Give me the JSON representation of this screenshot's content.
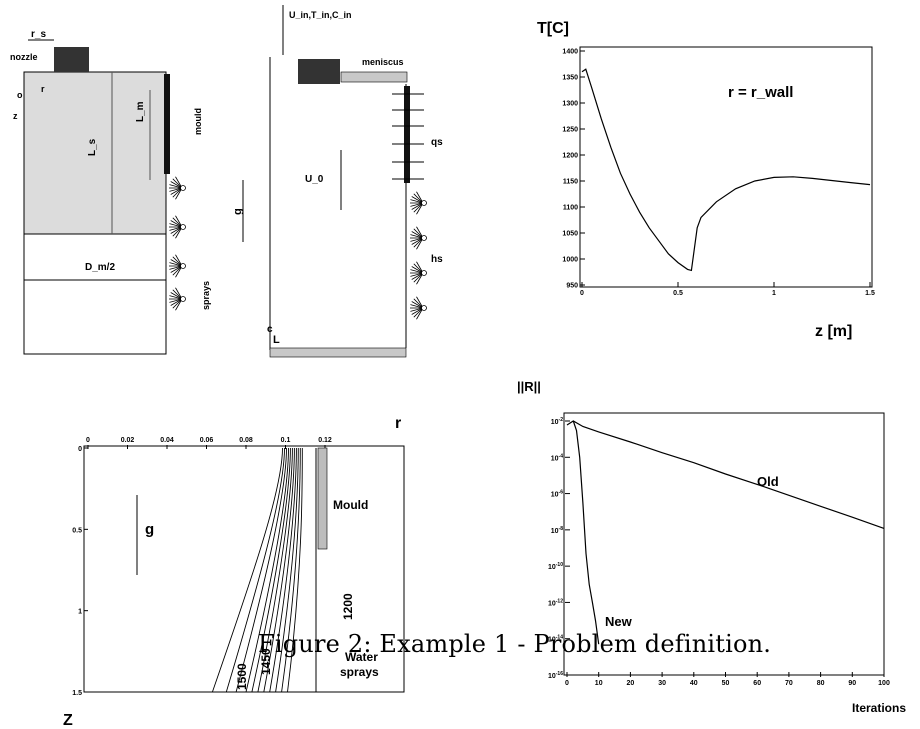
{
  "caption": "Figure 2: Example 1 - Problem definition.",
  "schematic": {
    "r_s": "r_s",
    "nozzle": "nozzle",
    "o": "o",
    "r": "r",
    "z": "z",
    "L_m": "L_m",
    "L_s": "L_s",
    "mould": "mould",
    "D_m2": "D_m/2",
    "sprays": "sprays",
    "inlet": "U_in,T_in,C_in",
    "meniscus": "meniscus",
    "qs": "qs",
    "U_0": "U_0",
    "g": "g",
    "hs": "hs",
    "c": "c",
    "L": "L"
  },
  "chart_data": [
    {
      "type": "line",
      "title": "T[C]",
      "xlabel": "z [m]",
      "annotation": "r = r_wall",
      "xlim": [
        0,
        1.5
      ],
      "ylim": [
        950,
        1400
      ],
      "x_ticks": [
        "0",
        "0.5",
        "1",
        "1.5"
      ],
      "y_ticks": [
        "950",
        "1000",
        "1050",
        "1100",
        "1150",
        "1200",
        "1250",
        "1300",
        "1350",
        "1400"
      ],
      "series": [
        {
          "x": [
            0,
            0.02,
            0.05,
            0.1,
            0.15,
            0.2,
            0.25,
            0.3,
            0.35,
            0.4,
            0.45,
            0.5,
            0.55,
            0.57,
            0.6,
            0.62,
            0.7,
            0.8,
            0.9,
            1.0,
            1.1,
            1.2,
            1.3,
            1.4,
            1.5
          ],
          "y": [
            1360,
            1365,
            1330,
            1270,
            1215,
            1165,
            1125,
            1090,
            1060,
            1035,
            1010,
            993,
            980,
            978,
            1060,
            1080,
            1110,
            1135,
            1150,
            1157,
            1158,
            1155,
            1151,
            1147,
            1143
          ]
        }
      ]
    },
    {
      "type": "contour",
      "xlabel": "r",
      "ylabel": "Z",
      "xlim": [
        0,
        0.16
      ],
      "ylim": [
        0,
        1.5
      ],
      "x_ticks": [
        "0",
        "0.02",
        "0.04",
        "0.06",
        "0.08",
        "0.1",
        "0.12"
      ],
      "y_ticks": [
        "0",
        "0.5",
        "1",
        "1.5"
      ],
      "annotations": [
        "g",
        "Mould",
        "Water",
        "sprays",
        "1200",
        "1450",
        "1500"
      ],
      "contours": [
        {
          "r_top": 0.1085,
          "r_bottom": 0.101
        },
        {
          "r_top": 0.1075,
          "r_bottom": 0.098
        },
        {
          "r_top": 0.1065,
          "r_bottom": 0.095
        },
        {
          "r_top": 0.1055,
          "r_bottom": 0.092
        },
        {
          "r_top": 0.1045,
          "r_bottom": 0.089
        },
        {
          "r_top": 0.1035,
          "r_bottom": 0.086
        },
        {
          "r_top": 0.1025,
          "r_bottom": 0.083
        },
        {
          "r_top": 0.1015,
          "r_bottom": 0.08
        },
        {
          "r_top": 0.1005,
          "r_bottom": 0.075
        },
        {
          "r_top": 0.0995,
          "r_bottom": 0.07
        },
        {
          "r_top": 0.0985,
          "r_bottom": 0.063
        }
      ]
    },
    {
      "type": "line",
      "title": "||R||",
      "xlabel": "Iterations",
      "yscale": "log",
      "xlim": [
        0,
        100
      ],
      "ylim": [
        1e-16,
        0.01
      ],
      "x_ticks": [
        "0",
        "10",
        "20",
        "30",
        "40",
        "50",
        "60",
        "70",
        "80",
        "90",
        "100"
      ],
      "y_ticks": [
        "10^-2",
        "10^-4",
        "10^-6",
        "10^-8",
        "10^-10",
        "10^-12",
        "10^-14",
        "10^-16"
      ],
      "series": [
        {
          "name": "Old",
          "x": [
            0,
            2,
            5,
            10,
            20,
            30,
            40,
            50,
            60,
            70,
            80,
            90,
            100
          ],
          "y": [
            0.006,
            0.01,
            0.005,
            0.0025,
            0.0007,
            0.00018,
            5e-05,
            1.2e-05,
            3.2e-06,
            8e-07,
            2e-07,
            5e-08,
            1.2e-08
          ]
        },
        {
          "name": "New",
          "x": [
            2,
            3,
            4,
            5,
            6,
            7,
            8,
            9,
            10
          ],
          "y": [
            0.01,
            0.003,
            0.0001,
            3e-07,
            5e-10,
            1e-11,
            1e-12,
            1e-13,
            5e-15
          ]
        }
      ]
    }
  ]
}
